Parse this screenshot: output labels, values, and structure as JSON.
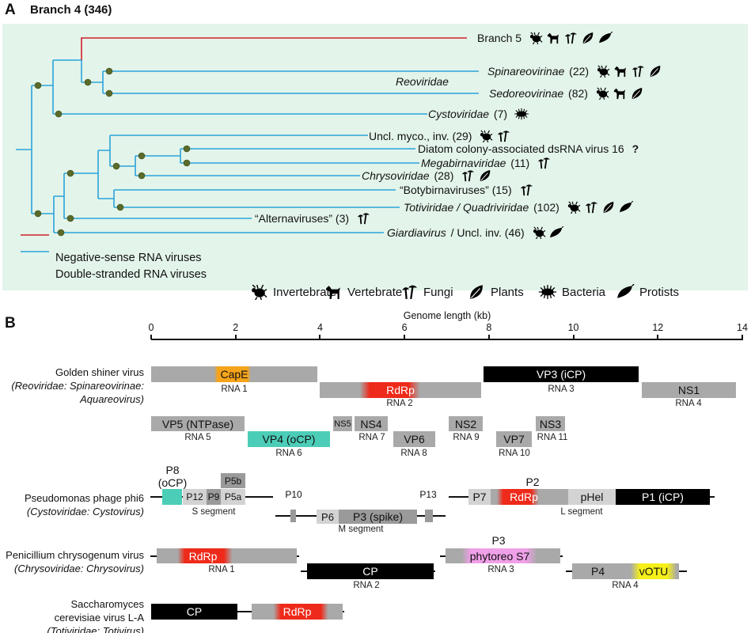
{
  "panel_a": {
    "label": "A",
    "title": "Branch 4 (346)",
    "clade_label": "Reoviridae",
    "taxa": [
      {
        "italic": "",
        "plain": "Branch 5",
        "hosts": [
          "invertebrate",
          "vertebrate",
          "fungi",
          "plants",
          "protists"
        ]
      },
      {
        "italic": "Spinareovirinae",
        "plain": " (22)",
        "hosts": [
          "invertebrate",
          "vertebrate",
          "fungi",
          "plants"
        ]
      },
      {
        "italic": "Sedoreovirinae",
        "plain": " (82)",
        "hosts": [
          "invertebrate",
          "vertebrate",
          "plants"
        ]
      },
      {
        "italic": "Cystoviridae",
        "plain": " (7)",
        "hosts": [
          "bacteria"
        ]
      },
      {
        "italic": "",
        "plain": "Uncl. myco., inv. (29)",
        "hosts": [
          "invertebrate",
          "fungi"
        ]
      },
      {
        "italic": "",
        "plain": "Diatom colony-associated dsRNA virus 16",
        "extra": "?",
        "hosts": []
      },
      {
        "italic": "Megabirnaviridae",
        "plain": " (11)",
        "hosts": [
          "fungi"
        ]
      },
      {
        "italic": "Chrysoviridae",
        "plain": " (28)",
        "hosts": [
          "fungi",
          "plants"
        ]
      },
      {
        "italic": "",
        "plain": "“Botybirnaviruses” (15)",
        "hosts": [
          "fungi"
        ]
      },
      {
        "italic": "Totiviridae / Quadriviridae",
        "plain": " (102)",
        "hosts": [
          "invertebrate",
          "fungi",
          "plants",
          "protists"
        ]
      },
      {
        "italic": "",
        "plain": "“Alternaviruses” (3)",
        "hosts": [
          "fungi"
        ]
      },
      {
        "italic": "Giardiavirus",
        "plain": " / Uncl. inv. (46)",
        "hosts": [
          "invertebrate",
          "protists"
        ]
      }
    ],
    "legend": [
      {
        "label": "Negative-sense RNA viruses",
        "color": "#d0202a"
      },
      {
        "label": "Double-stranded RNA viruses",
        "color": "#2aa3db"
      }
    ],
    "hosts_legend": [
      {
        "icon": "invertebrate",
        "label": "Invertebrate"
      },
      {
        "icon": "vertebrate",
        "label": "Vertebrate"
      },
      {
        "icon": "fungi",
        "label": "Fungi"
      },
      {
        "icon": "plants",
        "label": "Plants"
      },
      {
        "icon": "bacteria",
        "label": "Bacteria"
      },
      {
        "icon": "protists",
        "label": "Protists"
      }
    ]
  },
  "panel_b": {
    "label": "B",
    "axis_title": "Genome length (kb)",
    "ticks": [
      0,
      2,
      4,
      6,
      8,
      10,
      12,
      14
    ],
    "golden_shiner": {
      "name": "Golden shiner virus",
      "tax1": "(Reoviridae: Spinareovirinae:",
      "tax2": "Aquareovirus)",
      "genes": {
        "cape": "CapE",
        "rdrp": "RdRp",
        "vp3": "VP3 (iCP)",
        "ns1": "NS1",
        "vp5": "VP5 (NTPase)",
        "vp4": "VP4 (oCP)",
        "ns5": "NS5",
        "ns4": "NS4",
        "vp6": "VP6",
        "ns2": "NS2",
        "vp7": "VP7",
        "ns3": "NS3"
      },
      "segments": [
        "RNA 1",
        "RNA 2",
        "RNA 3",
        "RNA 4",
        "RNA 5",
        "RNA 6",
        "RNA 7",
        "RNA 8",
        "RNA 9",
        "RNA 10",
        "RNA 11"
      ]
    },
    "phi6": {
      "name": "Pseudomonas phage phi6",
      "tax": "(Cystoviridae: Cystovirus)",
      "genes": {
        "p8": "P8",
        "p8b": "(oCP)",
        "p12": "P12",
        "p9": "P9",
        "p5a": "P5a",
        "p5b": "P5b",
        "p10": "P10",
        "p6": "P6",
        "p3": "P3 (spike)",
        "p13": "P13",
        "p7": "P7",
        "p2": "P2",
        "rdrp": "RdRp",
        "phel": "pHel",
        "p1": "P1 (iCP)"
      },
      "segments": [
        "S segment",
        "M segment",
        "L segment"
      ]
    },
    "pcv": {
      "name": "Penicillium chrysogenum virus",
      "tax": "(Chrysoviridae: Chrysovirus)",
      "genes": {
        "rdrp": "RdRp",
        "cp": "CP",
        "p3": "P3",
        "s7": "phytoreo S7",
        "p4": "P4",
        "votu": "vOTU"
      },
      "segments": [
        "RNA 1",
        "RNA 2",
        "RNA 3",
        "RNA 4"
      ]
    },
    "la": {
      "name1": "Saccharomyces",
      "name2": "cerevisiae virus L-A",
      "tax": "(Totiviridae: Totivirus)",
      "genes": {
        "cp": "CP",
        "rdrp": "RdRp"
      }
    }
  },
  "colors": {
    "neg": "#d0202a",
    "ds": "#2aa3db",
    "node": "#5a6b2a",
    "rdrp": "#ee2a1a",
    "cape": "#f5a31a",
    "teal": "#4ccdb8",
    "pink": "#f0a0e8",
    "yellow": "#f5ef1a"
  }
}
